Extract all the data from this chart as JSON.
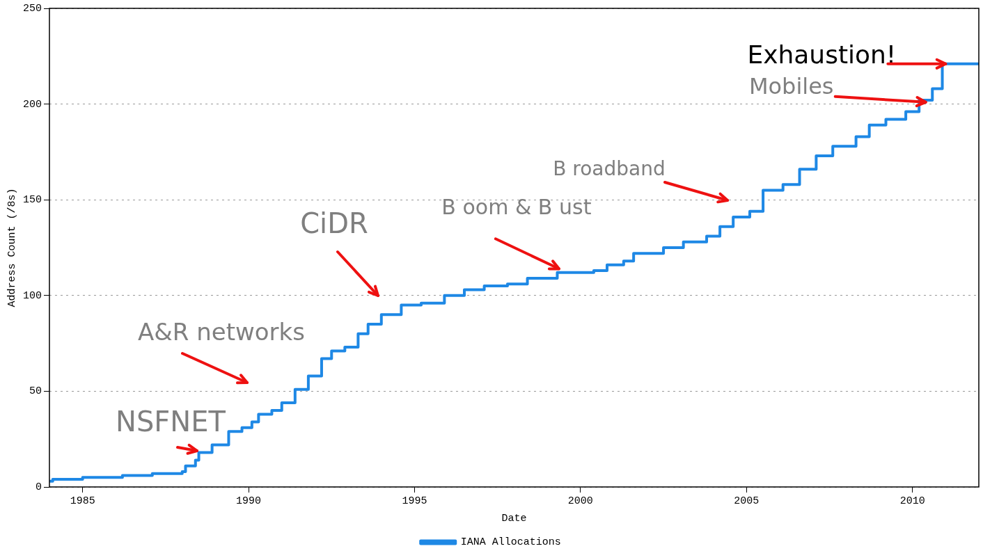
{
  "chart_data": {
    "type": "step",
    "xlabel": "Date",
    "ylabel": "Address Count (/8s)",
    "xlim": [
      1984,
      2012
    ],
    "xticks": [
      1985,
      1990,
      1995,
      2000,
      2005,
      2010
    ],
    "ylim": [
      0,
      250
    ],
    "yticks": [
      0,
      50,
      100,
      150,
      200,
      250
    ],
    "grid": "y",
    "legend": "bottom",
    "series": [
      {
        "name": "IANA Allocations",
        "color": "#1e88e5",
        "x": [
          1984.0,
          1984.1,
          1985.0,
          1986.2,
          1987.1,
          1988.0,
          1988.1,
          1988.4,
          1988.5,
          1988.9,
          1989.4,
          1989.8,
          1990.1,
          1990.3,
          1990.7,
          1991.0,
          1991.4,
          1991.8,
          1992.2,
          1992.5,
          1992.9,
          1993.3,
          1993.6,
          1994.0,
          1994.6,
          1995.2,
          1995.9,
          1996.5,
          1997.1,
          1997.8,
          1998.4,
          1999.3,
          2000.4,
          2000.8,
          2001.3,
          2001.6,
          2002.5,
          2003.1,
          2003.8,
          2004.2,
          2004.6,
          2005.1,
          2005.5,
          2006.1,
          2006.6,
          2007.1,
          2007.6,
          2008.3,
          2008.7,
          2009.2,
          2009.8,
          2010.2,
          2010.6,
          2010.9,
          2012.0
        ],
        "values": [
          3,
          4,
          5,
          6,
          7,
          8,
          11,
          14,
          18,
          22,
          29,
          31,
          34,
          38,
          40,
          44,
          51,
          58,
          67,
          71,
          73,
          80,
          85,
          90,
          95,
          96,
          100,
          103,
          105,
          106,
          109,
          112,
          113,
          116,
          118,
          122,
          125,
          128,
          131,
          136,
          141,
          144,
          155,
          158,
          166,
          173,
          178,
          183,
          189,
          192,
          196,
          202,
          208,
          221,
          221
        ]
      }
    ],
    "annotations": [
      "NSFNET",
      "A&R networks",
      "CiDR",
      {
        "text": "B oom & B ust",
        "x": 1999.35,
        "y": 114
      },
      "B roadband",
      {
        "text": "Mobiles",
        "x": 2010.4,
        "y": 201
      },
      {
        "text": "Exhaustion!",
        "x": 2011.0,
        "y": 221
      }
    ]
  }
}
